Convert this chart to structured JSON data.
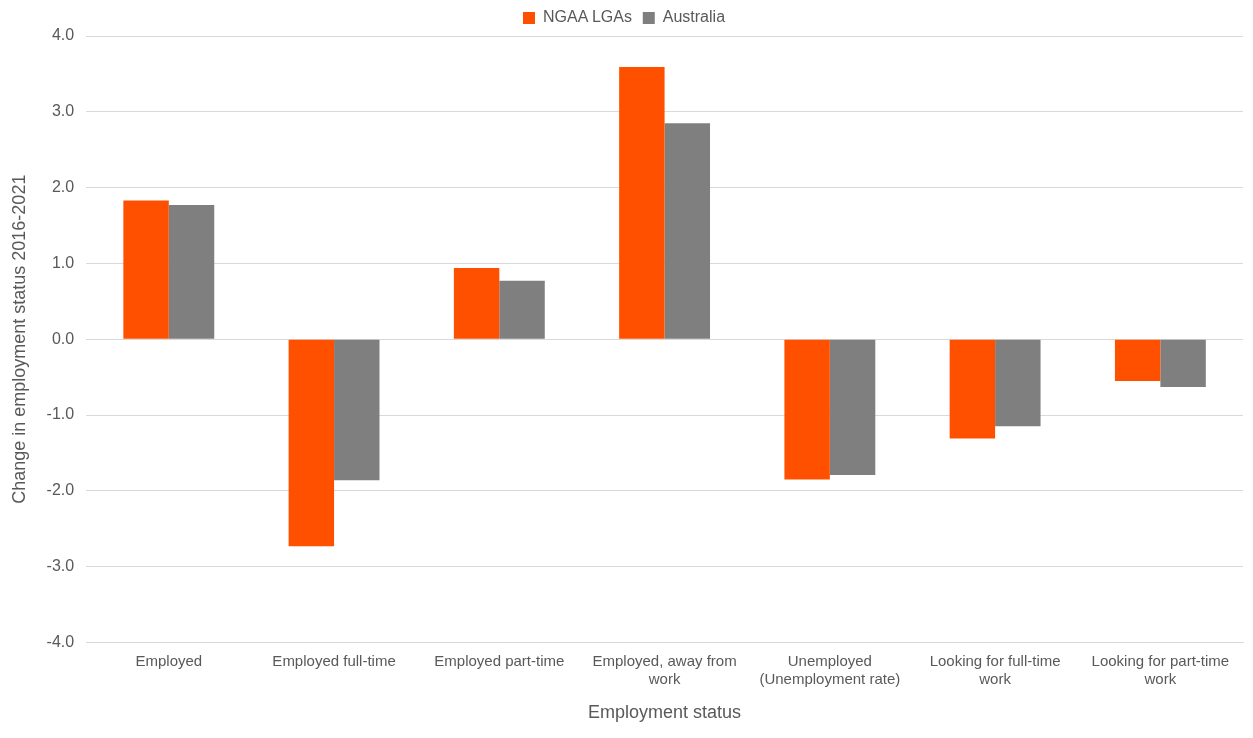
{
  "chart_data": {
    "type": "bar",
    "xlabel": "Employment status",
    "ylabel": "Change in employment status 2016-2021",
    "categories": [
      "Employed",
      "Employed full-time",
      "Employed part-time",
      "Employed, away from work",
      "Unemployed (Unemployment rate)",
      "Looking for full-time work",
      "Looking for part-time work"
    ],
    "series": [
      {
        "name": "NGAA LGAs",
        "color": "#ff5000",
        "values": [
          1.83,
          -2.73,
          0.94,
          3.59,
          -1.85,
          -1.31,
          -0.55
        ]
      },
      {
        "name": "Australia",
        "color": "#7f7f7f",
        "values": [
          1.77,
          -1.86,
          0.77,
          2.85,
          -1.79,
          -1.15,
          -0.63
        ]
      }
    ],
    "ylim": [
      -4,
      4
    ],
    "yticks": [
      {
        "value": -4,
        "label": "-4.0"
      },
      {
        "value": -3,
        "label": "-3.0"
      },
      {
        "value": -2,
        "label": "-2.0"
      },
      {
        "value": -1,
        "label": "-1.0"
      },
      {
        "value": 0,
        "label": "0.0"
      },
      {
        "value": 1,
        "label": "1.0"
      },
      {
        "value": 2,
        "label": "2.0"
      },
      {
        "value": 3,
        "label": "3.0"
      },
      {
        "value": 4,
        "label": "4.0"
      }
    ],
    "grid": "y",
    "legend": "top"
  }
}
